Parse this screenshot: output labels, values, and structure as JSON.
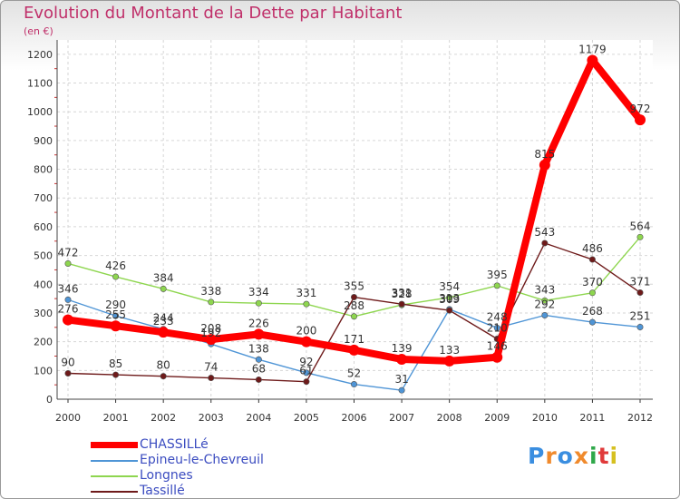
{
  "title": "Evolution du Montant de la Dette par Habitant",
  "unit_label": "(en €)",
  "logo": {
    "text": "Proxiti",
    "colors": [
      "#3a8ee0",
      "#f08a2c",
      "#3a8ee0",
      "#f08a2c",
      "#2fa84a",
      "#e03a3a",
      "#d6c020"
    ]
  },
  "chart_data": {
    "type": "line",
    "title": "Evolution du Montant de la Dette par Habitant",
    "ylabel": "(en €)",
    "ylim": [
      0,
      1250
    ],
    "yticks": [
      0,
      100,
      200,
      300,
      400,
      500,
      600,
      700,
      800,
      900,
      1000,
      1100,
      1200
    ],
    "x": [
      "2000",
      "2001",
      "2002",
      "2003",
      "2004",
      "2005",
      "2006",
      "2007",
      "2008",
      "2009",
      "2010",
      "2011",
      "2012"
    ],
    "grid": true,
    "legend_position": "bottom-left",
    "series": [
      {
        "name": "CHASSILLé",
        "color": "#ff0000",
        "values": [
          276,
          255,
          233,
          208,
          226,
          200,
          171,
          139,
          133,
          146,
          815,
          1179,
          972
        ]
      },
      {
        "name": "Epineu-le-Chevreuil",
        "color": "#4f95d6",
        "values": [
          346,
          290,
          244,
          192,
          138,
          92,
          52,
          31,
          313,
          248,
          292,
          268,
          251
        ]
      },
      {
        "name": "Longnes",
        "color": "#8ed64f",
        "values": [
          472,
          426,
          384,
          338,
          334,
          331,
          288,
          328,
          354,
          395,
          343,
          370,
          564
        ]
      },
      {
        "name": "Tassillé",
        "color": "#6e1a1a",
        "values": [
          90,
          85,
          80,
          74,
          68,
          61,
          355,
          331,
          309,
          210,
          543,
          486,
          371
        ]
      }
    ]
  }
}
